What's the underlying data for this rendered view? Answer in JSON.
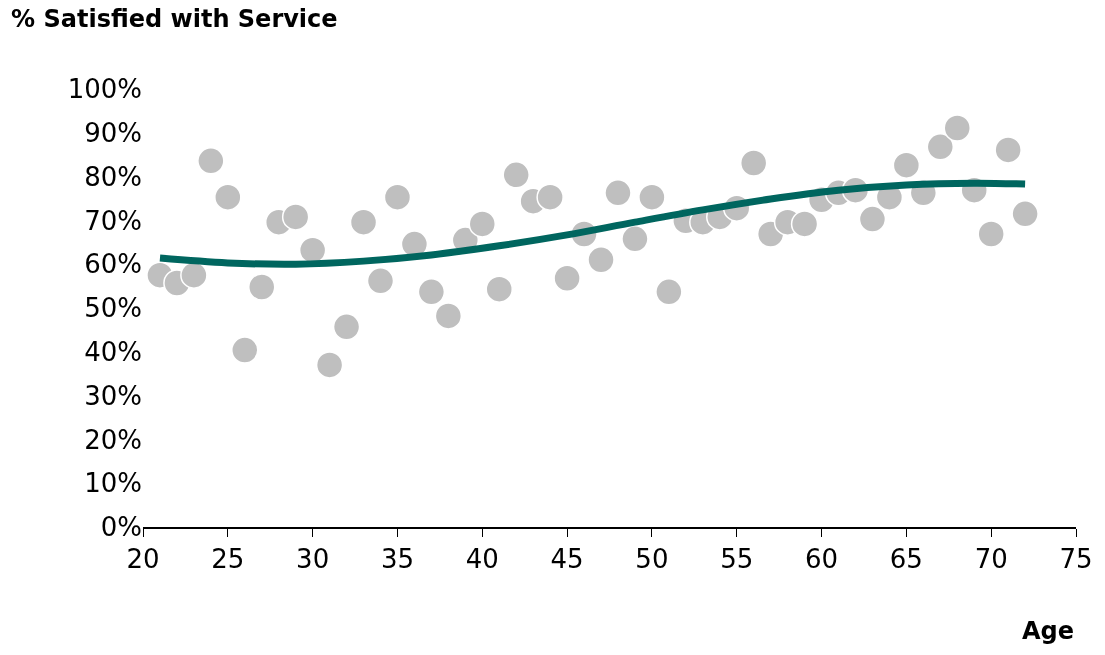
{
  "chart_data": {
    "type": "scatter",
    "title": "% Satisfied with Service",
    "xlabel": "Age",
    "xlim": [
      20,
      75
    ],
    "xticks": [
      20,
      25,
      30,
      35,
      40,
      45,
      50,
      55,
      60,
      65,
      70,
      75
    ],
    "ylim": [
      0,
      100
    ],
    "yticks": [
      {
        "value": 0,
        "label": "0%"
      },
      {
        "value": 10,
        "label": "10%"
      },
      {
        "value": 20,
        "label": "20%"
      },
      {
        "value": 30,
        "label": "30%"
      },
      {
        "value": 40,
        "label": "40%"
      },
      {
        "value": 50,
        "label": "50%"
      },
      {
        "value": 60,
        "label": "60%"
      },
      {
        "value": 70,
        "label": "70%"
      },
      {
        "value": 80,
        "label": "80%"
      },
      {
        "value": 90,
        "label": "90%"
      },
      {
        "value": 100,
        "label": "100%"
      }
    ],
    "legend": false,
    "series": [
      {
        "marker": "circle",
        "color": "#bfbfbf",
        "x": [
          21,
          22,
          23,
          24,
          25,
          26,
          27,
          28,
          29,
          30,
          31,
          32,
          33,
          34,
          35,
          36,
          37,
          38,
          39,
          40,
          41,
          42,
          43,
          44,
          45,
          46,
          47,
          48,
          49,
          50,
          51,
          52,
          53,
          54,
          55,
          56,
          57,
          58,
          59,
          60,
          61,
          62,
          63,
          64,
          65,
          66,
          67,
          68,
          69,
          70,
          71,
          72
        ],
        "values": [
          57.5,
          55.7,
          57.5,
          83.6,
          75.3,
          40.4,
          54.8,
          69.6,
          70.8,
          63.2,
          37.0,
          45.7,
          69.6,
          56.2,
          75.3,
          64.6,
          53.7,
          48.2,
          65.5,
          69.2,
          54.3,
          80.4,
          74.4,
          75.3,
          56.8,
          66.9,
          61.0,
          76.3,
          65.8,
          75.3,
          53.7,
          69.9,
          69.6,
          70.8,
          72.8,
          83.1,
          66.9,
          69.6,
          69.2,
          74.7,
          76.3,
          76.9,
          70.3,
          75.3,
          82.6,
          76.3,
          86.8,
          91.1,
          76.9,
          66.9,
          86.1,
          71.5
        ]
      },
      {
        "type": "line",
        "color": "#00665f",
        "line_style": "solid",
        "x": [
          21,
          25,
          29,
          33,
          37,
          41,
          45,
          49,
          53,
          57,
          61,
          65,
          69,
          72
        ],
        "values": [
          61.4,
          60.3,
          60.0,
          60.7,
          62.1,
          64.2,
          66.7,
          69.6,
          72.4,
          74.9,
          76.9,
          78.1,
          78.5,
          78.3
        ]
      }
    ]
  }
}
